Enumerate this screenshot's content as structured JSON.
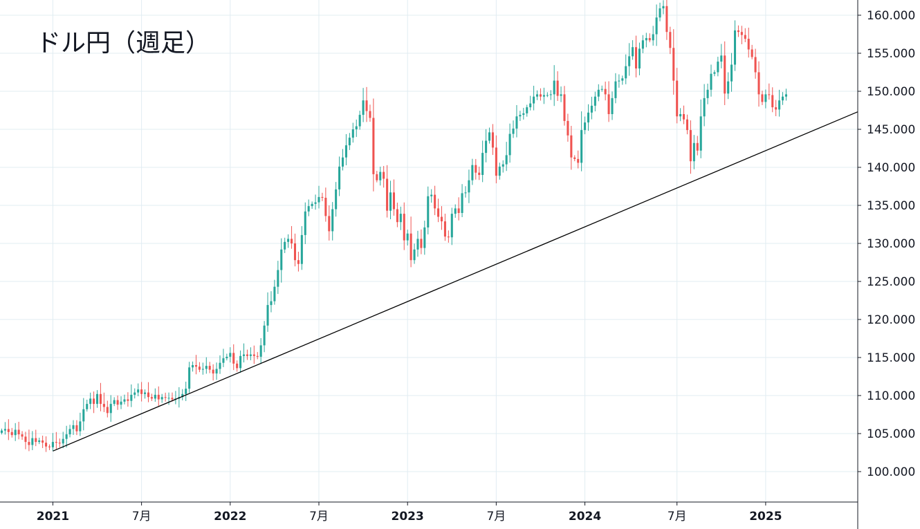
{
  "colors": {
    "up": "#26a69a",
    "down": "#ef5350",
    "grid": "#e1ecf2",
    "axis": "#131722",
    "trendline": "#000000",
    "background": "#ffffff"
  },
  "chart_data": {
    "type": "candlestick",
    "title": "ドル円（週足）",
    "interval": "weekly",
    "ylim": [
      96,
      162
    ],
    "y_ticks": [
      {
        "value": 100,
        "label": "100.000"
      },
      {
        "value": 105,
        "label": "105.000"
      },
      {
        "value": 110,
        "label": "110.000"
      },
      {
        "value": 115,
        "label": "115.000"
      },
      {
        "value": 120,
        "label": "120.000"
      },
      {
        "value": 125,
        "label": "125.000"
      },
      {
        "value": 130,
        "label": "130.000"
      },
      {
        "value": 135,
        "label": "135.000"
      },
      {
        "value": 140,
        "label": "140.000"
      },
      {
        "value": 145,
        "label": "145.000"
      },
      {
        "value": 150,
        "label": "150.000"
      },
      {
        "value": 155,
        "label": "155.000"
      },
      {
        "value": 160,
        "label": "160.000"
      }
    ],
    "x_ticks": [
      {
        "week": 0,
        "label": "2021",
        "bold": true
      },
      {
        "week": 26,
        "label": "7月",
        "bold": false
      },
      {
        "week": 52,
        "label": "2022",
        "bold": true
      },
      {
        "week": 78,
        "label": "7月",
        "bold": false
      },
      {
        "week": 104,
        "label": "2023",
        "bold": true
      },
      {
        "week": 130,
        "label": "7月",
        "bold": false
      },
      {
        "week": 156,
        "label": "2024",
        "bold": true
      },
      {
        "week": 183,
        "label": "7月",
        "bold": false
      },
      {
        "week": 209,
        "label": "2025",
        "bold": true
      }
    ],
    "x_range_weeks": [
      -15.5,
      236
    ],
    "closes_note": "weekly closing levels, one per week starting 2020-10 (week -15)",
    "start_week": -15,
    "closes": [
      105.4,
      105.6,
      105.2,
      104.8,
      105.5,
      104.9,
      104.6,
      103.9,
      103.5,
      104.4,
      103.9,
      104.1,
      103.8,
      103.3,
      103.2,
      103.9,
      103.8,
      103.7,
      104.3,
      104.9,
      105.6,
      106.1,
      105.3,
      106.6,
      108.2,
      108.9,
      109.6,
      108.9,
      110.2,
      108.9,
      108.5,
      107.7,
      108.9,
      109.4,
      108.8,
      109.2,
      109.5,
      109.3,
      110.1,
      110.4,
      110.8,
      110.2,
      110.4,
      109.8,
      109.6,
      110.1,
      109.5,
      109.8,
      109.7,
      109.7,
      109.5,
      109.6,
      109.8,
      110.2,
      110.9,
      113.7,
      114.0,
      113.8,
      113.4,
      113.5,
      113.9,
      113.4,
      112.9,
      113.5,
      114.3,
      114.9,
      115.1,
      115.6,
      114.2,
      113.6,
      115.2,
      115.4,
      115.2,
      115.4,
      115.2,
      115.1,
      116.6,
      119.2,
      121.9,
      122.4,
      124.3,
      126.5,
      129.2,
      130.2,
      130.6,
      130.0,
      127.8,
      127.3,
      131.1,
      134.2,
      134.9,
      135.2,
      135.4,
      136.1,
      136.0,
      133.6,
      131.6,
      134.5,
      137.1,
      140.1,
      141.3,
      142.9,
      143.9,
      145.0,
      145.4,
      146.9,
      148.8,
      147.4,
      146.5,
      139.1,
      138.3,
      139.4,
      138.5,
      134.3,
      136.7,
      134.5,
      132.8,
      133.9,
      130.4,
      131.3,
      127.8,
      129.2,
      130.6,
      129.4,
      132.1,
      136.2,
      136.4,
      134.6,
      133.5,
      132.9,
      130.9,
      130.8,
      133.9,
      134.6,
      134.0,
      136.6,
      136.7,
      138.3,
      140.3,
      139.3,
      139.0,
      141.9,
      143.5,
      144.6,
      142.6,
      138.9,
      140.1,
      140.4,
      141.6,
      144.4,
      145.1,
      146.7,
      146.9,
      147.1,
      147.9,
      148.4,
      149.3,
      149.6,
      149.3,
      149.5,
      149.5,
      149.6,
      151.4,
      149.4,
      149.6,
      146.1,
      144.2,
      141.3,
      141.1,
      140.6,
      144.9,
      145.9,
      147.2,
      148.1,
      149.3,
      150.2,
      150.3,
      149.6,
      147.0,
      149.1,
      151.3,
      151.4,
      151.7,
      153.3,
      154.6,
      155.8,
      153.0,
      155.6,
      156.7,
      157.0,
      156.7,
      157.5,
      159.7,
      160.9,
      161.2,
      157.8,
      155.7,
      151.4,
      146.7,
      147.0,
      146.3,
      144.9,
      140.8,
      143.2,
      142.2,
      146.7,
      149.1,
      150.2,
      152.3,
      152.5,
      153.9,
      154.7,
      149.7,
      151.3,
      153.5,
      158.0,
      157.8,
      157.4,
      156.9,
      155.5,
      154.5,
      152.5,
      149.6,
      148.6,
      149.6,
      149.5,
      147.9,
      147.6,
      148.8,
      149.3,
      149.6
    ],
    "trendline": {
      "from": {
        "week": 0,
        "value": 102.7
      },
      "to": {
        "week": 236,
        "value": 147.3
      }
    }
  }
}
